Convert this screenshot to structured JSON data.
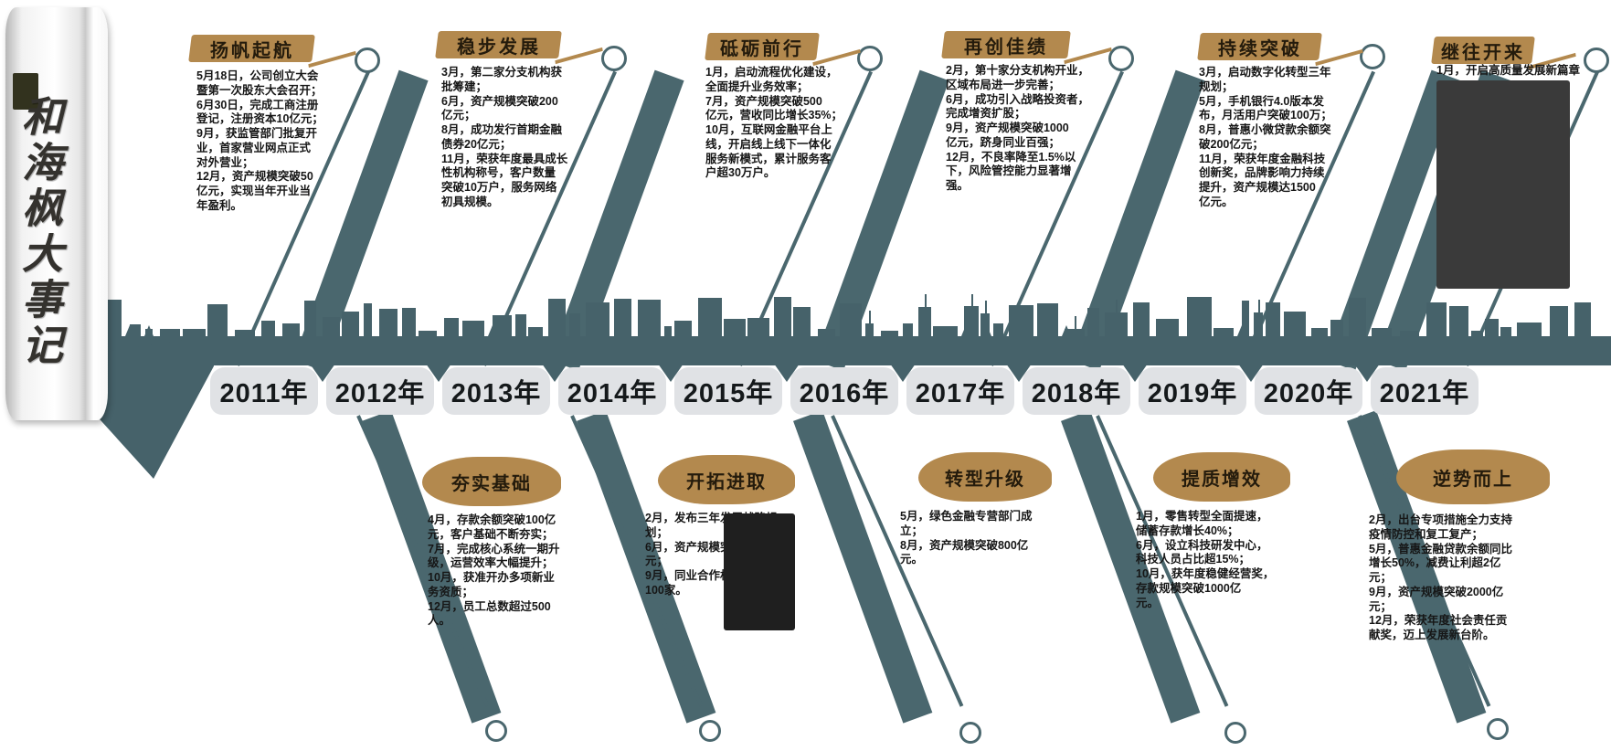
{
  "banner": {
    "text": "和海枫大事记"
  },
  "timeline": {
    "years": [
      "2011年",
      "2012年",
      "2013年",
      "2014年",
      "2015年",
      "2016年",
      "2017年",
      "2018年",
      "2019年",
      "2020年",
      "2021年"
    ]
  },
  "top_events": [
    {
      "year": "2011",
      "title": "扬帆起航",
      "lines": [
        "5月18日，公司创立大会",
        "暨第一次股东大会召开；",
        "6月30日，完成工商注册",
        "登记，注册资本10亿元；",
        "9月，获监管部门批复开",
        "业，首家营业网点正式",
        "对外营业；",
        "12月，资产规模突破50",
        "亿元，实现当年开业当",
        "年盈利。"
      ]
    },
    {
      "year": "2013",
      "title": "稳步发展",
      "lines": [
        "3月，第二家分支机构获",
        "批筹建；",
        "6月，资产规模突破200",
        "亿元；",
        "8月，成功发行首期金融",
        "债券20亿元；",
        "11月，荣获年度最具成长",
        "性机构称号，客户数量",
        "突破10万户，服务网络",
        "初具规模。"
      ]
    },
    {
      "year": "2015",
      "title": "砥砺前行",
      "lines": [
        "1月，启动流程优化建设，",
        "全面提升业务效率；",
        "7月，资产规模突破500",
        "亿元，营收同比增长35%；",
        "10月，互联网金融平台上",
        "线，开启线上线下一体化",
        "服务新模式，累计服务客",
        "户超30万户。"
      ]
    },
    {
      "year": "2017",
      "title": "再创佳绩",
      "lines": [
        "2月，第十家分支机构开业，",
        "区域布局进一步完善；",
        "6月，成功引入战略投资者，",
        "完成增资扩股；",
        "9月，资产规模突破1000",
        "亿元，跻身同业百强；",
        "12月，不良率降至1.5%以",
        "下，风险管控能力显著增",
        "强。"
      ]
    },
    {
      "year": "2019",
      "title": "持续突破",
      "lines": [
        "3月，启动数字化转型三年",
        "规划；",
        "5月，手机银行4.0版本发",
        "布，月活用户突破100万；",
        "8月，普惠小微贷款余额突",
        "破200亿元；",
        "11月，荣获年度金融科技",
        "创新奖，品牌影响力持续",
        "提升，资产规模达1500",
        "亿元。"
      ]
    },
    {
      "year": "2021",
      "title": "继往开来",
      "lines": [
        "1月，开启高质量发展新篇章"
      ]
    }
  ],
  "bottom_events": [
    {
      "year": "2012",
      "title": "夯实基础",
      "lines": [
        "4月，存款余额突破100亿",
        "元，客户基础不断夯实；",
        "7月，完成核心系统一期升",
        "级，运营效率大幅提升；",
        "10月，获准开办多项新业",
        "务资质；",
        "12月，员工总数超过500",
        "人。"
      ]
    },
    {
      "year": "2014",
      "title": "开拓进取",
      "lines": [
        "2月，发布三年发展战略规",
        "划；",
        "6月，资产规模突破300亿",
        "元；",
        "9月，同业合作机构达到",
        "100家。"
      ]
    },
    {
      "year": "2016",
      "title": "转型升级",
      "lines": [
        "5月，绿色金融专营部门成",
        "立；",
        "8月，资产规模突破800亿",
        "元。"
      ]
    },
    {
      "year": "2018",
      "title": "提质增效",
      "lines": [
        "1月，零售转型全面提速，",
        "储蓄存款增长40%；",
        "6月，设立科技研发中心，",
        "科技人员占比超15%；",
        "10月，获年度稳健经营奖，",
        "存款规模突破1000亿",
        "元。"
      ]
    },
    {
      "year": "2020",
      "title": "逆势而上",
      "lines": [
        "2月，出台专项措施全力支持",
        "疫情防控和复工复产；",
        "5月，普惠金融贷款余额同比",
        "增长50%，减费让利超2亿",
        "元；",
        "9月，资产规模突破2000亿",
        "元；",
        "12月，荣获年度社会责任贡",
        "献奖，迈上发展新台阶。"
      ]
    }
  ],
  "colors": {
    "teal": "#46626a",
    "gold": "#b3894e",
    "strip": "#e0e2e5",
    "ink": "#161616"
  }
}
